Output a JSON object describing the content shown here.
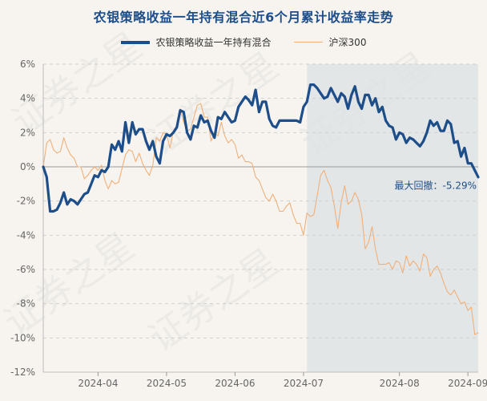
{
  "chart_data": {
    "type": "line",
    "title": "农银策略收益一年持有混合近6个月累计收益率走势",
    "xlabel": "",
    "ylabel": "",
    "ylim": [
      -12,
      6
    ],
    "yticks": [
      6,
      4,
      2,
      0,
      -2,
      -4,
      -6,
      -8,
      -10,
      -12
    ],
    "ytick_labels": [
      "6%",
      "4%",
      "2%",
      "0%",
      "-2%",
      "-4%",
      "-6%",
      "-8%",
      "-10%",
      "-12%"
    ],
    "x_tick_labels": [
      "2024-04",
      "2024-05",
      "2024-06",
      "2024-07",
      "2024-08",
      "2024-09"
    ],
    "x_tick_index": [
      16,
      36,
      56,
      76,
      104,
      124
    ],
    "x_count": 128,
    "max_drawdown_start_index": 77,
    "annotation": "最大回撤：-5.29%",
    "watermark": [
      "证券之星",
      "证券之星",
      "证券之星",
      "证券之星",
      "证券之星"
    ],
    "series": [
      {
        "name": "农银策略收益一年持有混合",
        "color": "#1d4e8a",
        "values": [
          0,
          -0.6,
          -2.6,
          -2.6,
          -2.5,
          -2.1,
          -1.5,
          -2.2,
          -1.9,
          -2.0,
          -2.2,
          -1.9,
          -1.6,
          -1.5,
          -1.0,
          -0.5,
          -0.6,
          -0.2,
          -0.3,
          0.0,
          1.3,
          1.0,
          1.5,
          0.9,
          2.6,
          1.4,
          2.6,
          1.9,
          2.2,
          2.2,
          1.5,
          1.0,
          1.5,
          0.6,
          0.2,
          1.5,
          1.9,
          1.8,
          2.0,
          2.3,
          3.3,
          3.2,
          2.0,
          1.6,
          2.4,
          2.3,
          3.0,
          2.6,
          2.7,
          2.1,
          1.7,
          2.9,
          2.8,
          3.2,
          2.9,
          2.6,
          2.7,
          3.5,
          3.8,
          4.1,
          3.9,
          3.6,
          4.5,
          3.2,
          3.8,
          3.8,
          2.8,
          2.4,
          2.3,
          2.7,
          2.7,
          2.7,
          2.7,
          2.7,
          2.7,
          2.6,
          3.5,
          3.8,
          4.8,
          4.8,
          4.6,
          4.3,
          4.0,
          4.1,
          4.6,
          4.2,
          3.8,
          4.3,
          4.1,
          3.4,
          4.2,
          4.7,
          3.8,
          3.4,
          4.2,
          4.2,
          3.6,
          4.0,
          3.2,
          3.5,
          2.7,
          2.4,
          2.3,
          1.6,
          2.0,
          1.9,
          1.4,
          1.7,
          1.6,
          1.4,
          1.2,
          1.5,
          2.0,
          2.7,
          2.4,
          2.6,
          2.1,
          2.1,
          2.7,
          2.5,
          1.4,
          1.5,
          0.6,
          1.1,
          0.2,
          0.2,
          -0.2,
          -0.6
        ]
      },
      {
        "name": "沪深300",
        "color": "#f0b07a",
        "values": [
          0,
          1.4,
          1.6,
          1.0,
          0.8,
          0.9,
          1.7,
          1.1,
          0.7,
          0.5,
          0.0,
          0.0,
          -0.7,
          -0.5,
          -0.2,
          0.0,
          -0.2,
          0.1,
          -0.8,
          -1.3,
          -0.8,
          -1.0,
          -0.9,
          -0.1,
          0.7,
          1.0,
          0.9,
          0.3,
          0.8,
          0.2,
          -0.2,
          -0.5,
          0.1,
          1.7,
          1.5,
          2.0,
          1.9,
          1.1,
          2.1,
          2.4,
          3.4,
          2.6,
          2.1,
          2.2,
          2.9,
          3.6,
          3.7,
          2.9,
          2.9,
          1.5,
          2.0,
          1.8,
          2.6,
          1.8,
          1.4,
          1.6,
          1.3,
          0.5,
          0.7,
          0.3,
          0.3,
          0.2,
          -0.6,
          -0.8,
          -1.3,
          -1.8,
          -2.0,
          -1.6,
          -2.0,
          -2.6,
          -2.6,
          -2.3,
          -2.1,
          -2.8,
          -3.3,
          -3.3,
          -4.0,
          -2.7,
          -2.9,
          -2.8,
          -1.7,
          -0.5,
          -0.2,
          -0.8,
          -1.2,
          -2.3,
          -3.6,
          -2.1,
          -1.1,
          -2.2,
          -2.0,
          -1.5,
          -1.9,
          -2.8,
          -4.8,
          -4.4,
          -3.5,
          -4.8,
          -5.7,
          -5.7,
          -5.7,
          -5.6,
          -6.0,
          -5.5,
          -5.6,
          -6.2,
          -5.2,
          -5.8,
          -5.5,
          -5.7,
          -6.1,
          -5.1,
          -5.3,
          -6.4,
          -6.0,
          -5.8,
          -6.2,
          -6.8,
          -7.3,
          -7.5,
          -7.2,
          -7.6,
          -8.0,
          -7.9,
          -8.4,
          -8.2,
          -9.8,
          -9.7
        ]
      }
    ]
  }
}
